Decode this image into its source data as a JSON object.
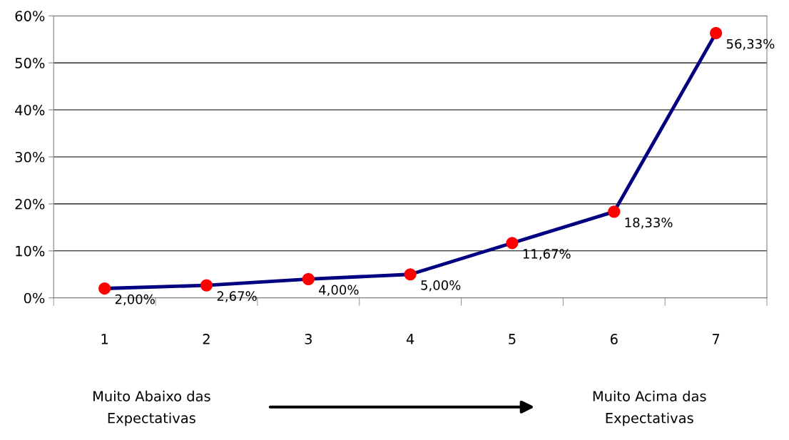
{
  "chart_data": {
    "type": "line",
    "categories": [
      "1",
      "2",
      "3",
      "4",
      "5",
      "6",
      "7"
    ],
    "series": [
      {
        "color": "#000080",
        "colors": [
          "#ff0000",
          "#ff0000",
          "#ff0000",
          "#ff0000",
          "#ff0000",
          "#ff0000",
          "#ff0000"
        ],
        "values": [
          2.0,
          2.67,
          4.0,
          5.0,
          11.67,
          18.33,
          56.33
        ],
        "marker": "circle",
        "value_labels": [
          "2,00%",
          "2,67%",
          "4,00%",
          "5,00%",
          "11,67%",
          "18,33%",
          "56,33%"
        ]
      }
    ],
    "ylim": [
      0,
      60
    ],
    "yticks": [
      {
        "value": 0,
        "label": "0%"
      },
      {
        "value": 10,
        "label": "10%"
      },
      {
        "value": 20,
        "label": "20%"
      },
      {
        "value": 30,
        "label": "30%"
      },
      {
        "value": 40,
        "label": "40%"
      },
      {
        "value": 50,
        "label": "50%"
      },
      {
        "value": 60,
        "label": "60%"
      }
    ],
    "grid": "y",
    "legend": false,
    "annotations": [
      "Muito Abaixo das\nExpectativas",
      "Muito Acima das\nExpectativas"
    ]
  }
}
